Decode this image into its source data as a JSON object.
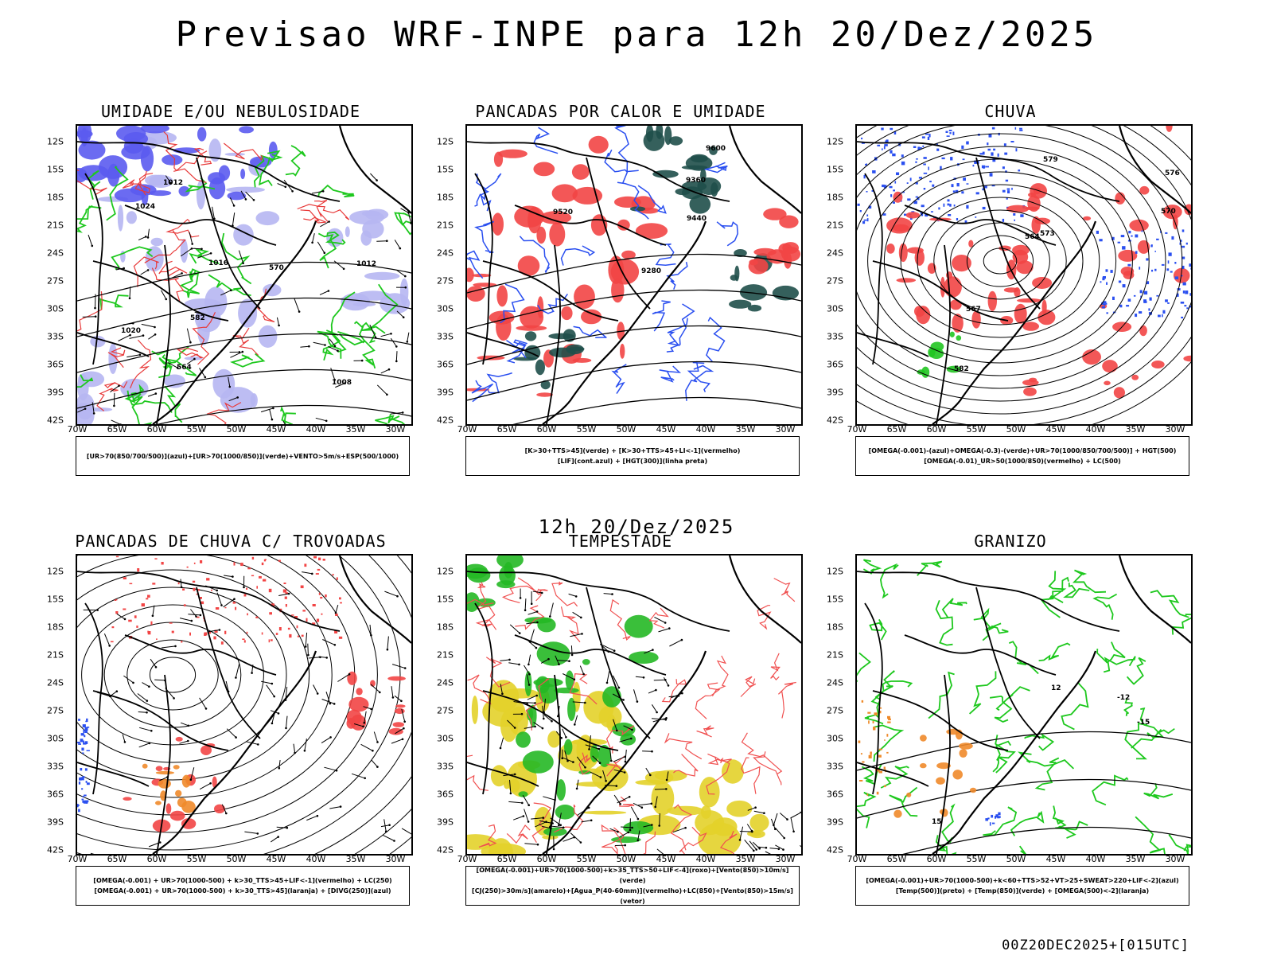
{
  "title": "Previsao WRF-INPE  para 12h 20/Dez/2025",
  "mid_title": "12h 20/Dez/2025",
  "footer": "00Z20DEC2025+[015UTC]",
  "axes": {
    "lat_labels": [
      "12S",
      "15S",
      "18S",
      "21S",
      "24S",
      "27S",
      "30S",
      "33S",
      "36S",
      "39S",
      "42S"
    ],
    "lon_labels": [
      "70W",
      "65W",
      "60W",
      "55W",
      "50W",
      "45W",
      "40W",
      "35W",
      "30W"
    ]
  },
  "panels": [
    {
      "title": "UMIDADE E/OU NEBULOSIDADE",
      "legend": [
        "[UR>70(850/700/500)](azul)+[UR>70(1000/850)](verde)+VENTO>5m/s+ESP(500/1000)"
      ],
      "colors": {
        "fill1": "#5b5bf0",
        "fill2": "#b6b6f2",
        "contour1": "#1ec81e",
        "contour2": "#e83a3a",
        "lines": "#000000"
      },
      "contour_labels": [
        "1012",
        "1012",
        "1016",
        "1008",
        "1020",
        "1024",
        "570",
        "564",
        "582"
      ]
    },
    {
      "title": "PANCADAS POR CALOR E UMIDADE",
      "legend": [
        "[K>30+TTS>45](verde) + [K>30+TTS>45+LI<-1](vermelho)",
        "[LIF](cont.azul) + [HGT(300)](linha preta)"
      ],
      "colors": {
        "fill1": "#f24545",
        "fill2": "#1f4f4a",
        "contour1": "#2a4ff0",
        "lines": "#000000"
      },
      "contour_labels": [
        "9600",
        "9520",
        "9440",
        "9360",
        "9280"
      ]
    },
    {
      "title": "CHUVA",
      "legend": [
        "[OMEGA(-0.001)-(azul)+OMEGA(-0.3)-(verde)+UR>70(1000/850/700/500)] + HGT(500)",
        "[OMEGA(-0.01)_UR>50(1000/850)(vermelho) + LC(500)"
      ],
      "colors": {
        "fill1": "#f24545",
        "fill2": "#2a4ff0",
        "fill3": "#21c521",
        "lines": "#000000"
      },
      "contour_labels": [
        "582",
        "579",
        "576",
        "573",
        "570",
        "567",
        "564"
      ]
    },
    {
      "title": "PANCADAS DE CHUVA C/ TROVOADAS",
      "legend": [
        "[OMEGA(-0.001) + UR>70(1000-500) + k>30_TTS>45+LIF<-1](vermelho) + LC(250)",
        "[OMEGA(-0.001) + UR>70(1000-500) + k>30_TTS>45](laranja) + [DIVG(250)](azul)"
      ],
      "colors": {
        "fill1": "#f24545",
        "fill2": "#ef8a2a",
        "fill3": "#2a4ff0",
        "lines": "#000000"
      },
      "contour_labels": []
    },
    {
      "title": "TEMPESTADE",
      "legend": [
        "[OMEGA(-0.001)+UR>70(1000-500)+k>35_TTS>50+LIF<-4](roxo)+[Vento(850)>10m/s](verde)",
        "[CJ(250)>30m/s](amarelo)+[Agua_P(40-60mm)](vermelho)+LC(850)+[Vento(850)>15m/s](vetor)"
      ],
      "colors": {
        "fill1": "#e3d22a",
        "fill2": "#25b825",
        "contour1": "#f05050",
        "lines": "#000000"
      },
      "contour_labels": []
    },
    {
      "title": "GRANIZO",
      "legend": [
        "[OMEGA(-0.001)+UR>70(1000-500)+k<60+TTS>52+VT>25+SWEAT>220+LIF<-2](azul)",
        "[Temp(500)](preto) + [Temp(850)](verde) + [OMEGA(500)<-2](laranja)"
      ],
      "colors": {
        "contour1": "#1ec81e",
        "fill1": "#ef8a2a",
        "fill2": "#2a4ff0",
        "lines": "#000000"
      },
      "contour_labels": [
        "-12",
        "12",
        "-15",
        "15"
      ]
    }
  ]
}
